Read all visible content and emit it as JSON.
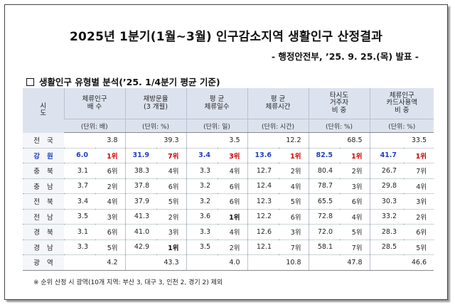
{
  "title": "2025년 1분기(1월~3월) 인구감소지역 생활인구 산정결과",
  "subtitle": "- 행정안전부, ’25. 9. 25.(목) 발표 -",
  "section_title": "생활인구 유형별 분석(’25. 1/4분기 평균 기준)",
  "table": {
    "col_sido": "시 도",
    "headers": [
      {
        "l1": "체류인구",
        "l2": "배    수"
      },
      {
        "l1": "재방문율",
        "l2": "(3 개월)"
      },
      {
        "l1": "평      균",
        "l2": "체류일수"
      },
      {
        "l1": "평      균",
        "l2": "체류시간"
      },
      {
        "l1": "타시도",
        "l2": "거주자",
        "l3": "비    중"
      },
      {
        "l1": "체류인구",
        "l2": "카드사용액",
        "l3": "비    중"
      }
    ],
    "units": [
      "(단위: 배)",
      "(단위: %)",
      "(단위: 일)",
      "(단위: 시간)",
      "(단위: %)",
      "(단위: %)"
    ],
    "national": {
      "name": "전국",
      "values": [
        "3.8",
        "39.3",
        "3.5",
        "12.2",
        "68.5",
        "33.5"
      ]
    },
    "rows": [
      {
        "name": "강원",
        "values": [
          [
            "6.0",
            "1위"
          ],
          [
            "31.9",
            "7위"
          ],
          [
            "3.4",
            "3위"
          ],
          [
            "13.6",
            "1위"
          ],
          [
            "82.5",
            "1위"
          ],
          [
            "41.7",
            "1위"
          ]
        ]
      },
      {
        "name": "충북",
        "values": [
          [
            "3.1",
            "6위"
          ],
          [
            "38.3",
            "4위"
          ],
          [
            "3.3",
            "4위"
          ],
          [
            "12.7",
            "2위"
          ],
          [
            "80.4",
            "2위"
          ],
          [
            "26.7",
            "7위"
          ]
        ]
      },
      {
        "name": "충남",
        "values": [
          [
            "3.7",
            "2위"
          ],
          [
            "37.8",
            "6위"
          ],
          [
            "3.2",
            "6위"
          ],
          [
            "12.4",
            "4위"
          ],
          [
            "78.7",
            "3위"
          ],
          [
            "29.8",
            "4위"
          ]
        ]
      },
      {
        "name": "전북",
        "values": [
          [
            "3.4",
            "4위"
          ],
          [
            "37.9",
            "5위"
          ],
          [
            "3.2",
            "6위"
          ],
          [
            "12.3",
            "5위"
          ],
          [
            "65.5",
            "6위"
          ],
          [
            "30.3",
            "3위"
          ]
        ]
      },
      {
        "name": "전남",
        "values": [
          [
            "3.5",
            "3위"
          ],
          [
            "41.3",
            "2위"
          ],
          [
            "3.6",
            "1위"
          ],
          [
            "12.2",
            "6위"
          ],
          [
            "72.8",
            "4위"
          ],
          [
            "33.2",
            "2위"
          ]
        ]
      },
      {
        "name": "경북",
        "values": [
          [
            "3.1",
            "6위"
          ],
          [
            "41.0",
            "3위"
          ],
          [
            "3.3",
            "4위"
          ],
          [
            "12.6",
            "3위"
          ],
          [
            "72.0",
            "5위"
          ],
          [
            "28.3",
            "6위"
          ]
        ]
      },
      {
        "name": "경남",
        "values": [
          [
            "3.3",
            "5위"
          ],
          [
            "42.9",
            "1위"
          ],
          [
            "3.5",
            "2위"
          ],
          [
            "12.1",
            "7위"
          ],
          [
            "58.1",
            "7위"
          ],
          [
            "28.5",
            "5위"
          ]
        ]
      }
    ],
    "metro": {
      "name": "광역",
      "values": [
        "4.2",
        "43.3",
        "4.0",
        "10.8",
        "47.8",
        "46.6"
      ]
    }
  },
  "footnote": "※ 순위 산정 시 광역(10개 지역: 부산 3, 대구 3, 인천 2, 경기 2) 제외"
}
